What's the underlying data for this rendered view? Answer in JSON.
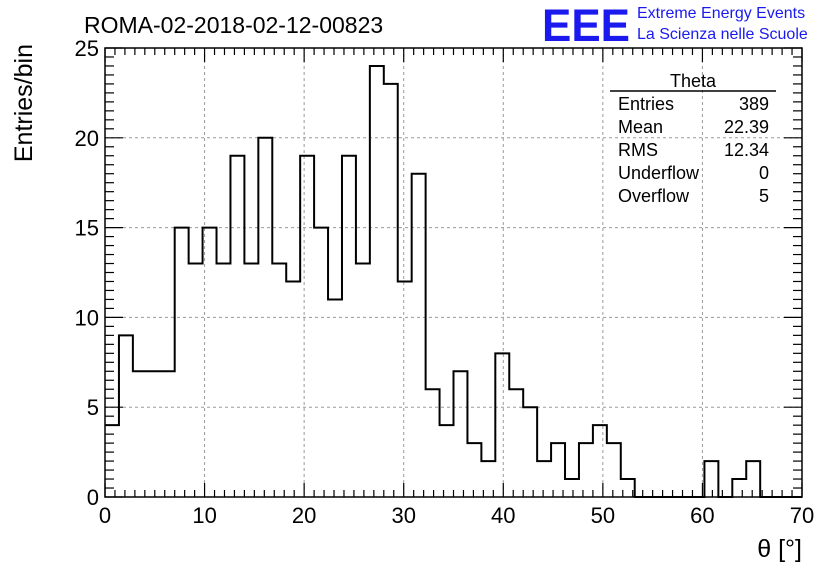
{
  "chart_data": {
    "type": "bar",
    "title": "ROMA-02-2018-02-12-00823",
    "xlabel": "θ [°]",
    "ylabel": "Entries/bin",
    "xlim": [
      0,
      70
    ],
    "ylim": [
      0,
      25
    ],
    "x_tick_labels": [
      "0",
      "10",
      "20",
      "30",
      "40",
      "50",
      "60",
      "70"
    ],
    "y_tick_labels": [
      "0",
      "5",
      "10",
      "15",
      "20",
      "25"
    ],
    "grid": true,
    "bin_width": 1.4,
    "values": [
      4,
      9,
      7,
      7,
      7,
      15,
      13,
      15,
      13,
      19,
      13,
      20,
      13,
      12,
      19,
      15,
      11,
      19,
      13,
      24,
      23,
      12,
      18,
      6,
      4,
      7,
      3,
      2,
      8,
      6,
      5,
      2,
      3,
      1,
      3,
      4,
      3,
      1,
      0,
      0,
      0,
      0,
      0,
      2,
      0,
      1,
      2,
      0,
      0,
      0
    ],
    "stats_box": {
      "title": "Theta",
      "rows": [
        {
          "label": "Entries",
          "value": "389"
        },
        {
          "label": "Mean",
          "value": "22.39"
        },
        {
          "label": "RMS",
          "value": "12.34"
        },
        {
          "label": "Underflow",
          "value": "0"
        },
        {
          "label": "Overflow",
          "value": "5"
        }
      ]
    }
  },
  "logo": {
    "text": "EEE",
    "line1": "Extreme Energy Events",
    "line2": "La Scienza nelle Scuole",
    "color": "#1a1aee"
  },
  "colors": {
    "line": "#000000",
    "grid": "#9a9a9a"
  }
}
